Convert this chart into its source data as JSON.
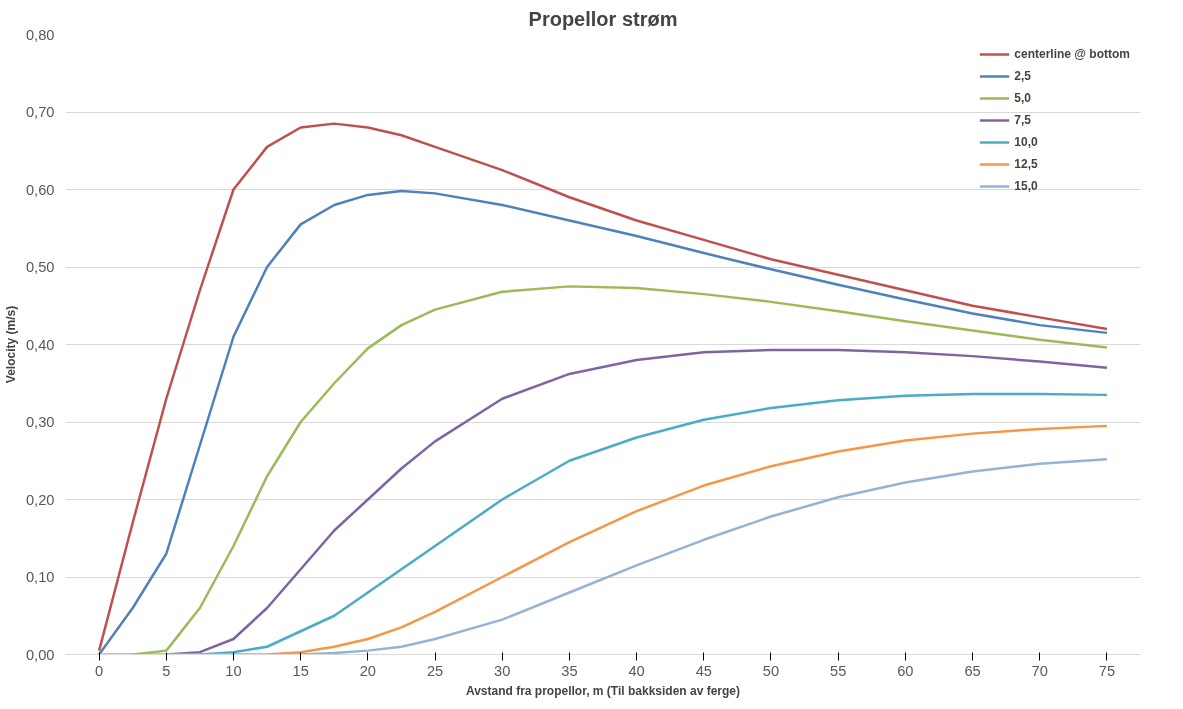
{
  "chart_data": {
    "type": "line",
    "title": "Propellor strøm",
    "xlabel": "Avstand fra propellor, m (Til bakksiden av ferge)",
    "ylabel": "Velocity (m/s)",
    "x": [
      0,
      2.5,
      5,
      7.5,
      10,
      12.5,
      15,
      17.5,
      20,
      22.5,
      25,
      30,
      35,
      40,
      45,
      50,
      55,
      60,
      65,
      70,
      75
    ],
    "series": [
      {
        "name": "centerline @ bottom",
        "color": "#c0504d",
        "values": [
          0.005,
          0.17,
          0.33,
          0.47,
          0.6,
          0.655,
          0.68,
          0.685,
          0.68,
          0.67,
          0.655,
          0.625,
          0.59,
          0.56,
          0.535,
          0.51,
          0.49,
          0.47,
          0.45,
          0.435,
          0.42
        ]
      },
      {
        "name": "2,5",
        "color": "#4f81bd",
        "values": [
          0,
          0.06,
          0.13,
          0.27,
          0.41,
          0.5,
          0.555,
          0.58,
          0.593,
          0.598,
          0.595,
          0.58,
          0.56,
          0.54,
          0.518,
          0.497,
          0.477,
          0.458,
          0.44,
          0.425,
          0.415
        ]
      },
      {
        "name": "5,0",
        "color": "#9bbb59",
        "values": [
          null,
          0,
          0.005,
          0.06,
          0.14,
          0.23,
          0.3,
          0.35,
          0.395,
          0.425,
          0.445,
          0.468,
          0.475,
          0.473,
          0.465,
          0.455,
          0.443,
          0.43,
          0.418,
          0.406,
          0.396
        ]
      },
      {
        "name": "7,5",
        "color": "#8064a2",
        "values": [
          null,
          null,
          0,
          0.003,
          0.02,
          0.06,
          0.11,
          0.16,
          0.2,
          0.24,
          0.275,
          0.33,
          0.362,
          0.38,
          0.39,
          0.393,
          0.393,
          0.39,
          0.385,
          0.378,
          0.37
        ]
      },
      {
        "name": "10,0",
        "color": "#4bacc6",
        "values": [
          null,
          null,
          null,
          0,
          0.003,
          0.01,
          0.03,
          0.05,
          0.08,
          0.11,
          0.14,
          0.2,
          0.25,
          0.28,
          0.303,
          0.318,
          0.328,
          0.334,
          0.336,
          0.336,
          0.335
        ]
      },
      {
        "name": "12,5",
        "color": "#f79646",
        "values": [
          null,
          null,
          null,
          null,
          null,
          0,
          0.003,
          0.01,
          0.02,
          0.035,
          0.055,
          0.1,
          0.145,
          0.185,
          0.218,
          0.243,
          0.262,
          0.276,
          0.285,
          0.291,
          0.295
        ]
      },
      {
        "name": "15,0",
        "color": "#95b3d7",
        "values": [
          0,
          0,
          0,
          0,
          0,
          0,
          0,
          0.002,
          0.005,
          0.01,
          0.02,
          0.045,
          0.08,
          0.115,
          0.148,
          0.178,
          0.203,
          0.222,
          0.236,
          0.246,
          0.252
        ]
      }
    ],
    "xlim": [
      -2.5,
      77.5
    ],
    "xticks": [
      0,
      5,
      10,
      15,
      20,
      25,
      30,
      35,
      40,
      45,
      50,
      55,
      60,
      65,
      70,
      75
    ],
    "ylim": [
      0,
      0.8
    ],
    "yticks": [
      {
        "value": 0,
        "label": "0,00"
      },
      {
        "value": 0.1,
        "label": "0,10"
      },
      {
        "value": 0.2,
        "label": "0,20"
      },
      {
        "value": 0.3,
        "label": "0,30"
      },
      {
        "value": 0.4,
        "label": "0,40"
      },
      {
        "value": 0.5,
        "label": "0,50"
      },
      {
        "value": 0.6,
        "label": "0,60"
      },
      {
        "value": 0.7,
        "label": "0,70"
      },
      {
        "value": 0.8,
        "label": "0,80"
      }
    ],
    "grid": "y",
    "legend": "top right",
    "line_style": "solid"
  }
}
